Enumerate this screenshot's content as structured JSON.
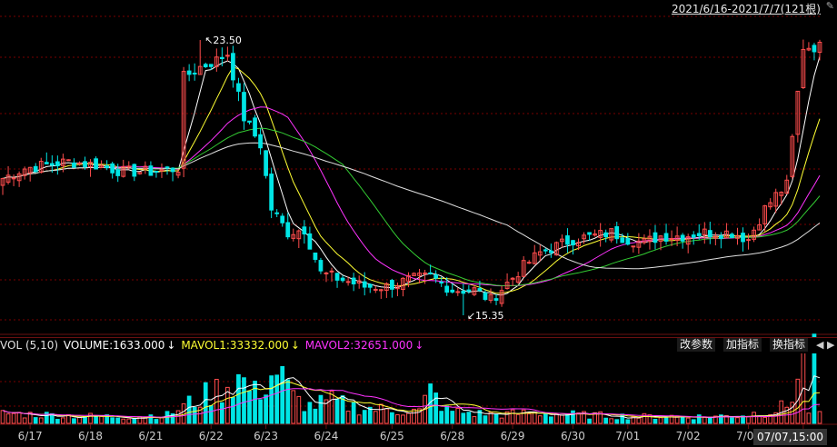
{
  "header": {
    "range_label": "2021/6/16-2021/7/7(121根)"
  },
  "volume_panel": {
    "name": "VOL (5,10)",
    "volume": "VOLUME:1633.000",
    "mavol1": "MAVOL1:33332.000",
    "mavol2": "MAVOL2:32651.000",
    "arrow": "↓",
    "buttons": [
      "改参数",
      "加指标",
      "换指标"
    ],
    "nav": [
      "◀",
      "▶"
    ]
  },
  "cursor_time": "07/07,15:00",
  "chart_data": {
    "type": "candlestick",
    "x_tick_labels": [
      "6/17",
      "6/18",
      "6/21",
      "6/22",
      "6/23",
      "6/24",
      "6/25",
      "6/28",
      "6/29",
      "6/30",
      "7/01",
      "7/02",
      "7/05",
      "7/06"
    ],
    "annotations": [
      {
        "text": "23.50",
        "arrow": "↖"
      },
      {
        "text": "15.35",
        "arrow": "↙"
      }
    ],
    "ylim": [
      15.0,
      24.2
    ],
    "colors": {
      "up": "#ff4d4d",
      "down": "#00e5e5",
      "ma5": "#ffffff",
      "ma10": "#ffff33",
      "ma20": "#ff33ff",
      "ma30": "#33cc33",
      "ma60": "#e0e0e0",
      "grid": "#7a0000"
    },
    "anchors": {
      "close": [
        [
          0,
          19.4
        ],
        [
          4,
          19.7
        ],
        [
          8,
          19.8
        ],
        [
          12,
          19.9
        ],
        [
          17,
          19.8
        ],
        [
          22,
          19.6
        ],
        [
          27,
          19.6
        ],
        [
          32,
          19.7
        ],
        [
          33,
          22.4
        ],
        [
          36,
          22.7
        ],
        [
          39,
          22.9
        ],
        [
          41,
          23.1
        ],
        [
          44,
          21.2
        ],
        [
          47,
          20.4
        ],
        [
          49,
          18.5
        ],
        [
          52,
          17.8
        ],
        [
          55,
          17.9
        ],
        [
          58,
          16.6
        ],
        [
          62,
          16.4
        ],
        [
          66,
          16.2
        ],
        [
          70,
          16.2
        ],
        [
          74,
          16.4
        ],
        [
          78,
          16.5
        ],
        [
          82,
          16.1
        ],
        [
          86,
          16.1
        ],
        [
          89,
          15.8
        ],
        [
          92,
          16.3
        ],
        [
          95,
          16.8
        ],
        [
          98,
          17.2
        ],
        [
          101,
          17.4
        ],
        [
          104,
          17.6
        ],
        [
          108,
          17.7
        ],
        [
          111,
          17.8
        ],
        [
          114,
          17.6
        ],
        [
          117,
          17.5
        ],
        [
          120,
          17.7
        ],
        [
          124,
          17.7
        ],
        [
          128,
          17.8
        ],
        [
          133,
          17.8
        ],
        [
          136,
          17.6
        ],
        [
          139,
          18.5
        ],
        [
          141,
          18.9
        ],
        [
          143,
          19.2
        ],
        [
          146,
          23.3
        ],
        [
          149,
          23.3
        ]
      ],
      "volume": [
        [
          0,
          1.8
        ],
        [
          6,
          1.6
        ],
        [
          12,
          1.4
        ],
        [
          20,
          1.2
        ],
        [
          30,
          1.5
        ],
        [
          34,
          3.6
        ],
        [
          38,
          5.5
        ],
        [
          43,
          8.2
        ],
        [
          46,
          5.4
        ],
        [
          50,
          9.6
        ],
        [
          53,
          4.6
        ],
        [
          56,
          3.1
        ],
        [
          60,
          4.0
        ],
        [
          64,
          3.0
        ],
        [
          68,
          2.6
        ],
        [
          72,
          2.4
        ],
        [
          76,
          2.2
        ],
        [
          78,
          5.8
        ],
        [
          81,
          2.3
        ],
        [
          86,
          1.8
        ],
        [
          91,
          1.6
        ],
        [
          96,
          1.9
        ],
        [
          101,
          1.7
        ],
        [
          106,
          1.5
        ],
        [
          110,
          1.4
        ],
        [
          116,
          1.2
        ],
        [
          122,
          1.3
        ],
        [
          128,
          1.2
        ],
        [
          134,
          1.4
        ],
        [
          140,
          2.2
        ],
        [
          143,
          3.1
        ],
        [
          146,
          10.8
        ],
        [
          147,
          2.4
        ],
        [
          148,
          10.9
        ],
        [
          149,
          2.2
        ]
      ]
    }
  }
}
